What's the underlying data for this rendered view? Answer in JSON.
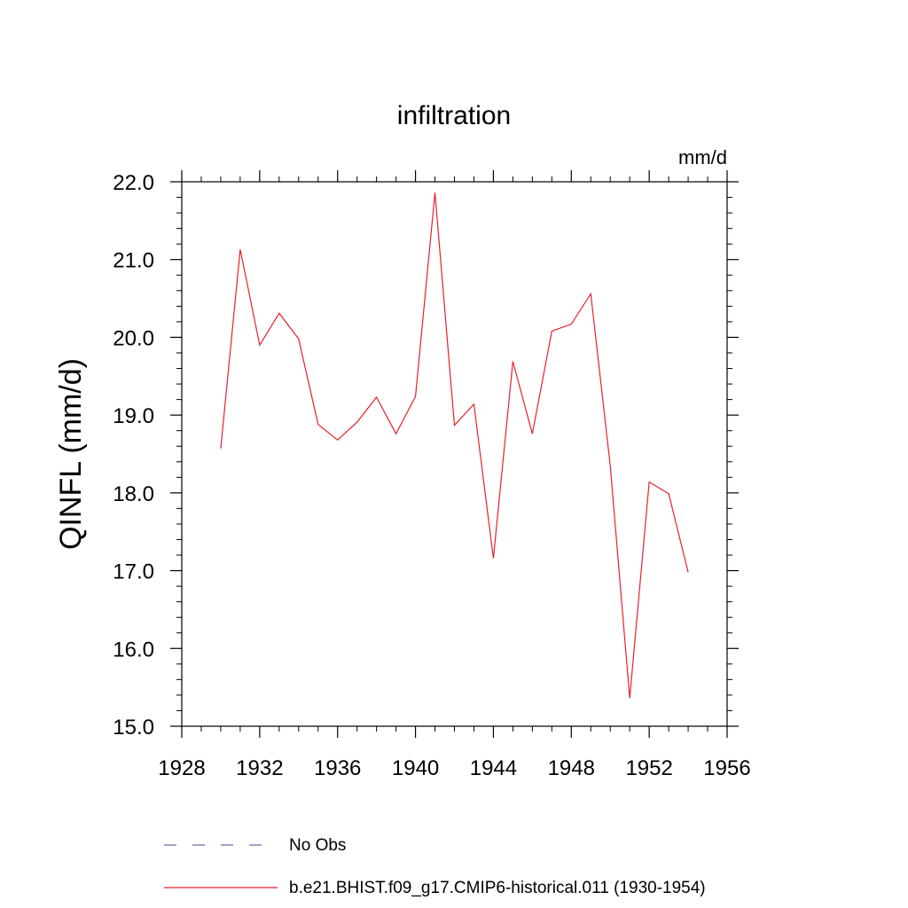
{
  "chart_data": {
    "type": "line",
    "title": "infiltration",
    "units_label": "mm/d",
    "ylabel": "QINFL  (mm/d)",
    "xlabel": "",
    "xlim": [
      1928,
      1956
    ],
    "ylim": [
      15.0,
      22.0
    ],
    "x_ticks": [
      "1928",
      "1932",
      "1936",
      "1940",
      "1944",
      "1948",
      "1952",
      "1956"
    ],
    "y_ticks": [
      "15.0",
      "16.0",
      "17.0",
      "18.0",
      "19.0",
      "20.0",
      "21.0",
      "22.0"
    ],
    "grid": false,
    "legend_position": "bottom",
    "series": [
      {
        "name": "No Obs",
        "color": "#6a6aaa",
        "dash": "dashed",
        "x": [],
        "values": []
      },
      {
        "name": "b.e21.BHIST.f09_g17.CMIP6-historical.011 (1930-1954)",
        "color": "#e8202a",
        "dash": "solid",
        "x": [
          1930,
          1931,
          1932,
          1933,
          1934,
          1935,
          1936,
          1937,
          1938,
          1939,
          1940,
          1941,
          1942,
          1943,
          1944,
          1945,
          1946,
          1947,
          1948,
          1949,
          1950,
          1951,
          1952,
          1953,
          1954
        ],
        "values": [
          18.57,
          21.13,
          19.9,
          20.31,
          19.98,
          18.88,
          18.68,
          18.91,
          19.23,
          18.76,
          19.24,
          21.86,
          18.87,
          19.14,
          17.16,
          19.69,
          18.76,
          20.08,
          20.17,
          20.56,
          18.35,
          15.36,
          18.14,
          17.99,
          16.98
        ]
      }
    ]
  }
}
